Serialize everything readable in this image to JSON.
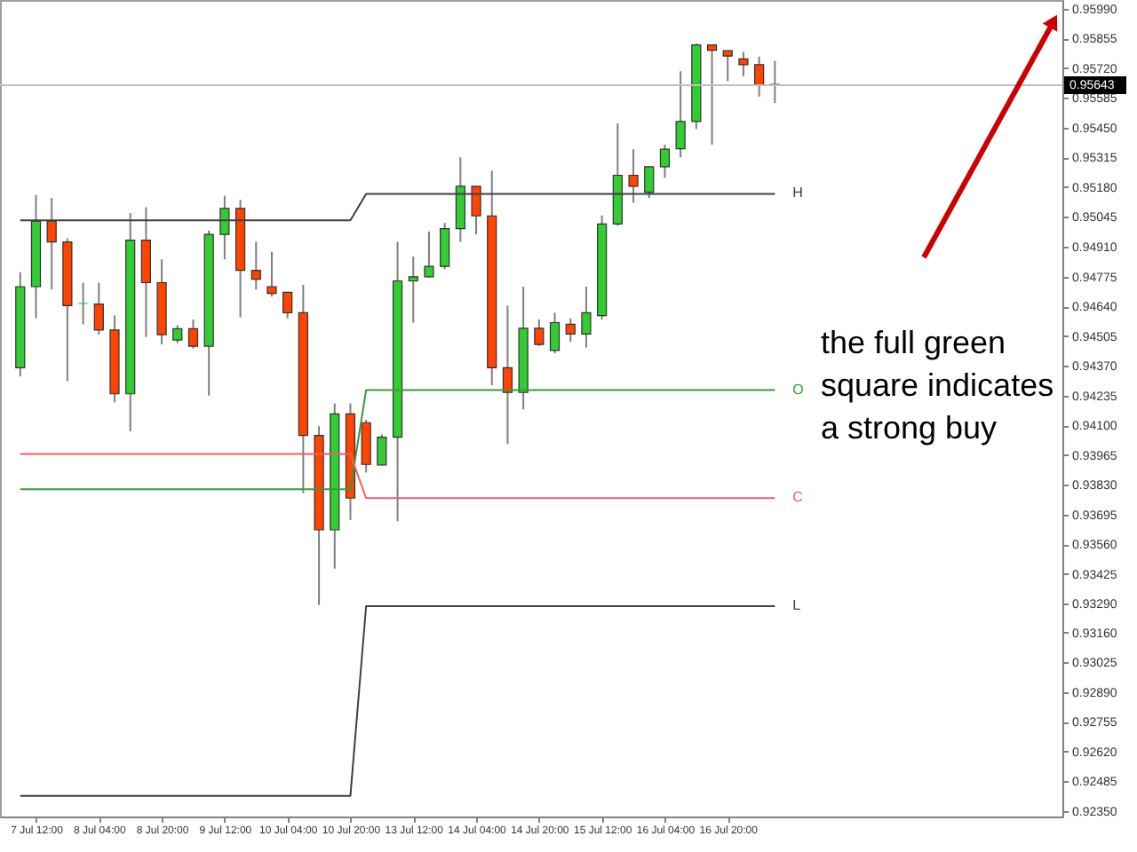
{
  "chart_data": {
    "type": "candlestick",
    "categories": [
      null,
      "7 Jul 12:00",
      null,
      null,
      null,
      "8 Jul 04:00",
      null,
      null,
      null,
      "8 Jul 20:00",
      null,
      null,
      null,
      "9 Jul 12:00",
      null,
      null,
      null,
      "10 Jul 04:00",
      null,
      null,
      null,
      "10 Jul 20:00",
      null,
      null,
      null,
      "13 Jul 12:00",
      null,
      null,
      null,
      "14 Jul 04:00",
      null,
      null,
      null,
      "14 Jul 20:00",
      null,
      null,
      null,
      "15 Jul 12:00",
      null,
      null,
      null,
      "16 Jul 04:00",
      null,
      null,
      null,
      "16 Jul 20:00",
      null,
      null,
      null
    ],
    "ohlc": [
      [
        0.94361,
        0.94795,
        0.94322,
        0.94729
      ],
      [
        0.94729,
        0.95145,
        0.94585,
        0.95026
      ],
      [
        0.95026,
        0.95131,
        0.94716,
        0.94932
      ],
      [
        0.94932,
        0.94948,
        0.94301,
        0.94643
      ],
      [
        0.94653,
        0.94747,
        0.94558,
        0.94653
      ],
      [
        0.9465,
        0.94747,
        0.94511,
        0.94532
      ],
      [
        0.94532,
        0.94598,
        0.94204,
        0.94243
      ],
      [
        0.94243,
        0.95063,
        0.94073,
        0.9494
      ],
      [
        0.9494,
        0.95089,
        0.94501,
        0.94747
      ],
      [
        0.94747,
        0.94853,
        0.94467,
        0.94511
      ],
      [
        0.94487,
        0.94554,
        0.94472,
        0.94538
      ],
      [
        0.94538,
        0.9458,
        0.94448,
        0.94459
      ],
      [
        0.94459,
        0.94984,
        0.94235,
        0.94966
      ],
      [
        0.94966,
        0.95141,
        0.94853,
        0.95084
      ],
      [
        0.95084,
        0.95123,
        0.9459,
        0.94803
      ],
      [
        0.94803,
        0.94932,
        0.94716,
        0.94763
      ],
      [
        0.94729,
        0.94887,
        0.94684,
        0.94698
      ],
      [
        0.94703,
        0.94703,
        0.94585,
        0.94611
      ],
      [
        0.94611,
        0.94737,
        0.93792,
        0.94054
      ],
      [
        0.94054,
        0.94096,
        0.93285,
        0.93626
      ],
      [
        0.93626,
        0.94199,
        0.9345,
        0.94152
      ],
      [
        0.94152,
        0.94199,
        0.93671,
        0.9377
      ],
      [
        0.94112,
        0.94125,
        0.93886,
        0.93923
      ],
      [
        0.9392,
        0.94059,
        0.93918,
        0.94046
      ],
      [
        0.94046,
        0.94932,
        0.93665,
        0.94755
      ],
      [
        0.94755,
        0.94866,
        0.94566,
        0.94774
      ],
      [
        0.94774,
        0.94979,
        0.94769,
        0.94821
      ],
      [
        0.94821,
        0.95018,
        0.94808,
        0.94992
      ],
      [
        0.94992,
        0.95315,
        0.94932,
        0.95184
      ],
      [
        0.95184,
        0.95184,
        0.94966,
        0.9505
      ],
      [
        0.9505,
        0.95255,
        0.94282,
        0.94361
      ],
      [
        0.94361,
        0.94643,
        0.94015,
        0.94249
      ],
      [
        0.94249,
        0.94729,
        0.94172,
        0.9454
      ],
      [
        0.9454,
        0.9458,
        0.94459,
        0.94467
      ],
      [
        0.9444,
        0.94611,
        0.94427,
        0.94566
      ],
      [
        0.94558,
        0.94585,
        0.94479,
        0.94514
      ],
      [
        0.94514,
        0.94729,
        0.94453,
        0.94611
      ],
      [
        0.94598,
        0.95052,
        0.9458,
        0.95013
      ],
      [
        0.95013,
        0.9547,
        0.95005,
        0.95234
      ],
      [
        0.95234,
        0.95352,
        0.9511,
        0.95184
      ],
      [
        0.95157,
        0.95273,
        0.95131,
        0.95273
      ],
      [
        0.95273,
        0.95373,
        0.95223,
        0.95352
      ],
      [
        0.95354,
        0.95706,
        0.95315,
        0.95478
      ],
      [
        0.95478,
        0.95832,
        0.95444,
        0.95825
      ],
      [
        0.95825,
        0.95825,
        0.95373,
        0.95801
      ],
      [
        0.95799,
        0.95799,
        0.95661,
        0.95775
      ],
      [
        0.95762,
        0.95793,
        0.95683,
        0.95736
      ],
      [
        0.95736,
        0.95772,
        0.95591,
        0.95643
      ],
      [
        0.95646,
        0.95754,
        0.95562,
        0.95643
      ]
    ],
    "colors": [
      "#32cd32",
      "#32cd32",
      "#ff4500",
      "#ff4500",
      "#32cd32",
      "#ff4500",
      "#ff4500",
      "#32cd32",
      "#ff4500",
      "#ff4500",
      "#32cd32",
      "#ff4500",
      "#32cd32",
      "#32cd32",
      "#ff4500",
      "#ff4500",
      "#ff4500",
      "#ff4500",
      "#ff4500",
      "#ff4500",
      "#32cd32",
      "#ff4500",
      "#ff4500",
      "#32cd32",
      "#32cd32",
      "#32cd32",
      "#32cd32",
      "#32cd32",
      "#32cd32",
      "#ff4500",
      "#ff4500",
      "#ff4500",
      "#32cd32",
      "#ff4500",
      "#32cd32",
      "#ff4500",
      "#32cd32",
      "#32cd32",
      "#32cd32",
      "#ff4500",
      "#32cd32",
      "#32cd32",
      "#32cd32",
      "#32cd32",
      "#ff4500",
      "#ff4500",
      "#ff4500",
      "#ff4500",
      "#ff4500"
    ],
    "series": [
      {
        "name": "H",
        "type": "line",
        "color": "#404040",
        "values": [
          0.9503,
          0.9503,
          0.9503,
          0.9503,
          0.9503,
          0.9503,
          0.9503,
          0.9503,
          0.9503,
          0.9503,
          0.9503,
          0.9503,
          0.9503,
          0.9503,
          0.9503,
          0.9503,
          0.9503,
          0.9503,
          0.9503,
          0.9503,
          0.9503,
          0.9503,
          0.9515,
          0.9515,
          0.9515,
          0.9515,
          0.9515,
          0.9515,
          0.9515,
          0.9515,
          0.9515,
          0.9515,
          0.9515,
          0.9515,
          0.9515,
          0.9515,
          0.9515,
          0.9515,
          0.9515,
          0.9515,
          0.9515,
          0.9515,
          0.9515,
          0.9515,
          0.9515,
          0.9515,
          0.9515,
          0.9515,
          0.9515
        ]
      },
      {
        "name": "O",
        "type": "line",
        "color": "#3a9a3a",
        "values": [
          0.9381,
          0.9381,
          0.9381,
          0.9381,
          0.9381,
          0.9381,
          0.9381,
          0.9381,
          0.9381,
          0.9381,
          0.9381,
          0.9381,
          0.9381,
          0.9381,
          0.9381,
          0.9381,
          0.9381,
          0.9381,
          0.9381,
          0.9381,
          0.9381,
          0.9381,
          0.9426,
          0.9426,
          0.9426,
          0.9426,
          0.9426,
          0.9426,
          0.9426,
          0.9426,
          0.9426,
          0.9426,
          0.9426,
          0.9426,
          0.9426,
          0.9426,
          0.9426,
          0.9426,
          0.9426,
          0.9426,
          0.9426,
          0.9426,
          0.9426,
          0.9426,
          0.9426,
          0.9426,
          0.9426,
          0.9426,
          0.9426
        ]
      },
      {
        "name": "C",
        "type": "line",
        "color": "#f06060",
        "values": [
          0.9397,
          0.9397,
          0.9397,
          0.9397,
          0.9397,
          0.9397,
          0.9397,
          0.9397,
          0.9397,
          0.9397,
          0.9397,
          0.9397,
          0.9397,
          0.9397,
          0.9397,
          0.9397,
          0.9397,
          0.9397,
          0.9397,
          0.9397,
          0.9397,
          0.9397,
          0.9377,
          0.9377,
          0.9377,
          0.9377,
          0.9377,
          0.9377,
          0.9377,
          0.9377,
          0.9377,
          0.9377,
          0.9377,
          0.9377,
          0.9377,
          0.9377,
          0.9377,
          0.9377,
          0.9377,
          0.9377,
          0.9377,
          0.9377,
          0.9377,
          0.9377,
          0.9377,
          0.9377,
          0.9377,
          0.9377,
          0.9377
        ]
      },
      {
        "name": "L",
        "type": "line",
        "color": "#404040",
        "values": [
          0.9242,
          0.9242,
          0.9242,
          0.9242,
          0.9242,
          0.9242,
          0.9242,
          0.9242,
          0.9242,
          0.9242,
          0.9242,
          0.9242,
          0.9242,
          0.9242,
          0.9242,
          0.9242,
          0.9242,
          0.9242,
          0.9242,
          0.9242,
          0.9242,
          0.9242,
          0.9328,
          0.9328,
          0.9328,
          0.9328,
          0.9328,
          0.9328,
          0.9328,
          0.9328,
          0.9328,
          0.9328,
          0.9328,
          0.9328,
          0.9328,
          0.9328,
          0.9328,
          0.9328,
          0.9328,
          0.9328,
          0.9328,
          0.9328,
          0.9328,
          0.9328,
          0.9328,
          0.9328,
          0.9328,
          0.9328,
          0.9328
        ]
      }
    ],
    "ylim": [
      0.92326,
      0.96029
    ],
    "yticks": [
      {
        "value": 0.9599,
        "label": "0.95990"
      },
      0.95855,
      {
        "value": 0.9572,
        "label": "0.95720"
      },
      0.95585,
      {
        "value": 0.9545,
        "label": "0.95450"
      },
      0.95315,
      {
        "value": 0.9518,
        "label": "0.95180"
      },
      0.95045,
      {
        "value": 0.9491,
        "label": "0.94910"
      },
      0.94775,
      {
        "value": 0.9464,
        "label": "0.94640"
      },
      0.94505,
      {
        "value": 0.9437,
        "label": "0.94370"
      },
      0.94235,
      {
        "value": 0.941,
        "label": "0.94100"
      },
      0.93965,
      {
        "value": 0.9383,
        "label": "0.93830"
      },
      0.93695,
      {
        "value": 0.9356,
        "label": "0.93560"
      },
      0.93425,
      {
        "value": 0.9329,
        "label": "0.93290"
      },
      {
        "value": 0.9316,
        "label": "0.93160"
      },
      0.93025,
      {
        "value": 0.9289,
        "label": "0.92890"
      },
      0.92755,
      {
        "value": 0.9262,
        "label": "0.92620"
      },
      0.92485,
      {
        "value": 0.9235,
        "label": "0.92350"
      }
    ],
    "ref_lines": [
      {
        "axis": "y",
        "value": 0.95643,
        "label": "0.95643",
        "color": "#c0c0c0"
      }
    ],
    "annotations": [
      "the full green\nsquare indicates\na strong buy"
    ],
    "grid": false
  }
}
